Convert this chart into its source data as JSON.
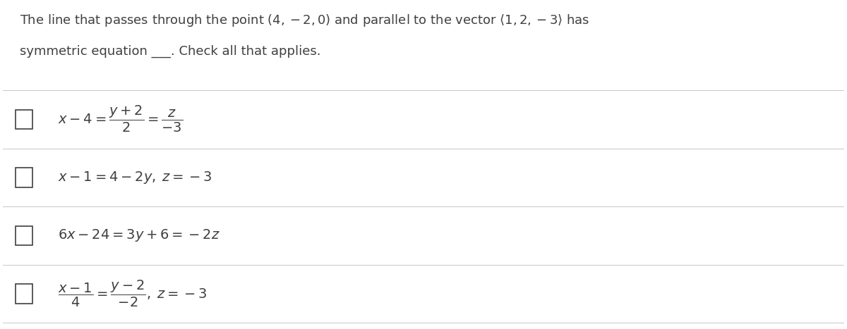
{
  "bg_color": "#ffffff",
  "text_color": "#404040",
  "title_line1": "The line that passes through the point $(4, -2, 0)$ and parallel to the vector $\\langle 1, 2, -3\\rangle$ has",
  "title_line2": "symmetric equation ___. Check all that applies.",
  "options": [
    "$x - 4 = \\dfrac{y+2}{2} = \\dfrac{z}{-3}$",
    "$x - 1 = 4 - 2y,\\; z = -3$",
    "$6x - 24 = 3y + 6 = -2z$",
    "$\\dfrac{x-1}{4} = \\dfrac{y-2}{-2},\\; z = -3$"
  ],
  "divider_color": "#cccccc",
  "checkbox_color": "#404040",
  "figsize": [
    12.0,
    4.67
  ],
  "dpi": 100
}
